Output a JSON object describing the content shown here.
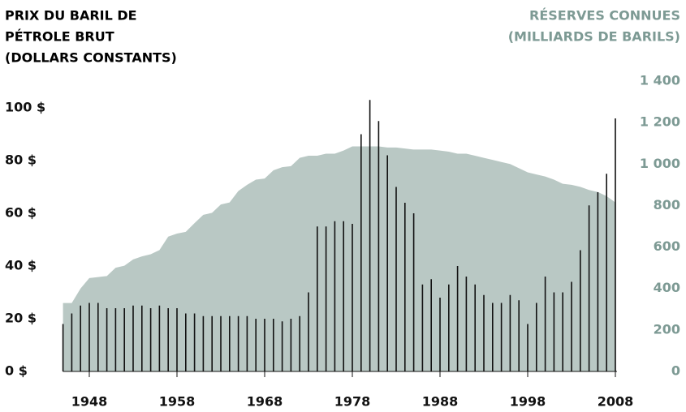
{
  "chart_data": {
    "type": "bar-area",
    "y_label_lines": [
      "PRIX DU BARIL DE",
      "PÉTROLE BRUT",
      "(DOLLARS CONSTANTS)"
    ],
    "y2_label_lines": [
      "RÉSERVES CONNUES",
      "(MILLIARDS DE BARILS)"
    ],
    "x": [
      1945,
      1946,
      1947,
      1948,
      1949,
      1950,
      1951,
      1952,
      1953,
      1954,
      1955,
      1956,
      1957,
      1958,
      1959,
      1960,
      1961,
      1962,
      1963,
      1964,
      1965,
      1966,
      1967,
      1968,
      1969,
      1970,
      1971,
      1972,
      1973,
      1974,
      1975,
      1976,
      1977,
      1978,
      1979,
      1980,
      1981,
      1982,
      1983,
      1984,
      1985,
      1986,
      1987,
      1988,
      1989,
      1990,
      1991,
      1992,
      1993,
      1994,
      1995,
      1996,
      1997,
      1998,
      1999,
      2000,
      2001,
      2002,
      2003,
      2004,
      2005,
      2006,
      2007,
      2008
    ],
    "series": [
      {
        "name": "Réserves connues",
        "type": "area",
        "axis": "y2",
        "color": "#b9c8c4",
        "values": [
          330,
          330,
          400,
          450,
          455,
          460,
          500,
          510,
          540,
          555,
          565,
          585,
          650,
          665,
          673,
          715,
          755,
          765,
          805,
          815,
          870,
          900,
          925,
          930,
          970,
          985,
          990,
          1030,
          1040,
          1040,
          1050,
          1050,
          1065,
          1085,
          1085,
          1085,
          1085,
          1080,
          1080,
          1075,
          1070,
          1070,
          1070,
          1065,
          1060,
          1050,
          1050,
          1040,
          1030,
          1020,
          1010,
          1000,
          980,
          960,
          950,
          940,
          925,
          905,
          900,
          890,
          875,
          865,
          845,
          815
        ]
      },
      {
        "name": "Prix du baril",
        "type": "bar",
        "color": "#111111",
        "values": [
          18,
          22,
          25,
          26,
          26,
          24,
          24,
          24,
          25,
          25,
          24,
          25,
          24,
          24,
          22,
          22,
          21,
          21,
          21,
          21,
          21,
          21,
          20,
          20,
          20,
          19,
          20,
          21,
          30,
          55,
          55,
          57,
          57,
          56,
          90,
          103,
          95,
          82,
          70,
          64,
          60,
          33,
          35,
          28,
          33,
          40,
          36,
          33,
          29,
          26,
          26,
          29,
          27,
          18,
          26,
          36,
          30,
          30,
          34,
          46,
          63,
          68,
          75,
          96
        ]
      }
    ],
    "xlim": [
      1945,
      2008
    ],
    "xticks": [
      1948,
      1958,
      1968,
      1978,
      1988,
      1998,
      2008
    ],
    "ylim": [
      0,
      100
    ],
    "yticks": [
      {
        "value": 0,
        "label": "0 $"
      },
      {
        "value": 20,
        "label": "20 $"
      },
      {
        "value": 40,
        "label": "40 $"
      },
      {
        "value": 60,
        "label": "60 $"
      },
      {
        "value": 80,
        "label": "80 $"
      },
      {
        "value": 100,
        "label": "100 $"
      }
    ],
    "y2lim": [
      0,
      1400
    ],
    "y2ticks": [
      0,
      200,
      400,
      600,
      800,
      {
        "value": 1000,
        "label": "1 000"
      },
      {
        "value": 1200,
        "label": "1 200"
      },
      {
        "value": 1400,
        "label": "1 400"
      }
    ],
    "y2_color": "#7d9a94"
  }
}
